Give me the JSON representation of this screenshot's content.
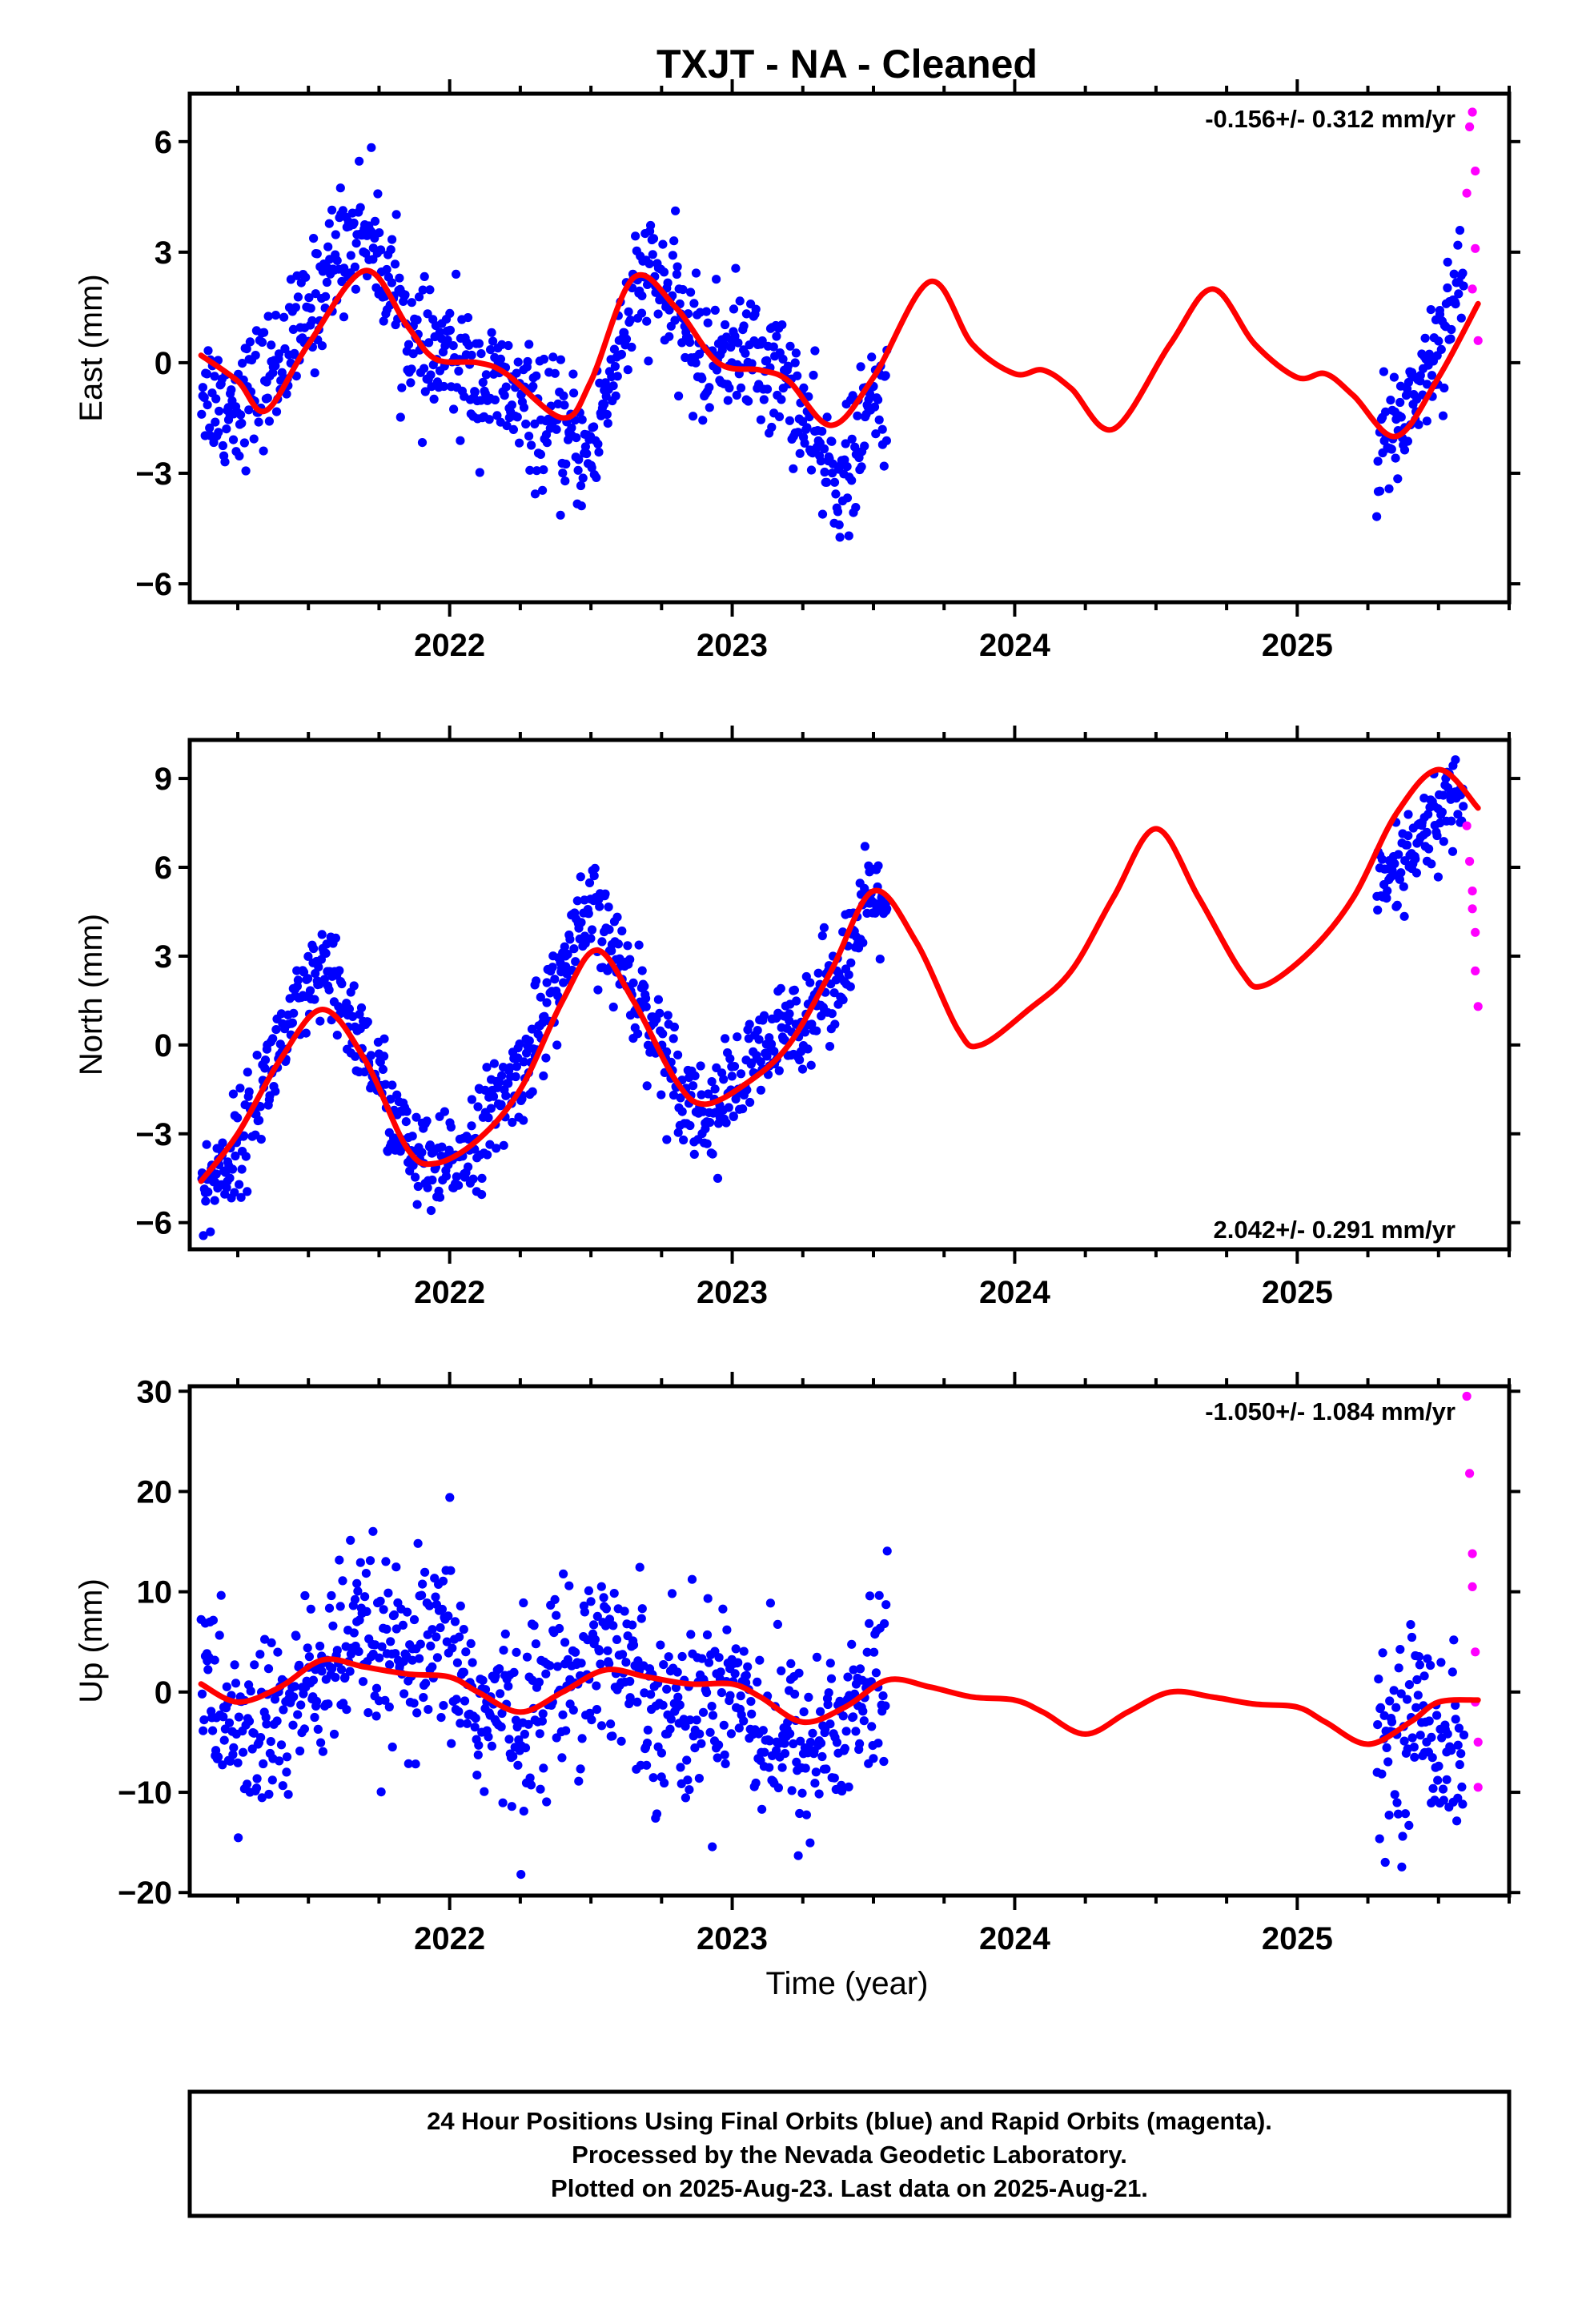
{
  "title": "TXJT  - NA - Cleaned",
  "xlabel": "Time (year)",
  "footer": {
    "line1": "24 Hour Positions Using Final Orbits (blue) and Rapid Orbits (magenta).",
    "line2": "Processed by the Nevada Geodetic Laboratory.",
    "line3": "Plotted on 2025-Aug-23. Last data on 2025-Aug-21."
  },
  "colors": {
    "final": "#0000ff",
    "rapid": "#ff00ff",
    "model": "#ff0000",
    "axes": "#000000"
  },
  "chart_data": [
    {
      "type": "scatter",
      "ylabel": "East (mm)",
      "rate": "-0.156+/- 0.312 mm/yr",
      "rate_position": "top-right",
      "xlim": [
        2021.08,
        2025.75
      ],
      "ylim": [
        -6.5,
        7.3
      ],
      "xticks": [
        2022,
        2023,
        2024,
        2025
      ],
      "yticks": [
        6,
        3,
        0,
        -3,
        -6
      ],
      "yticklabels": [
        "6",
        "3",
        "0",
        "−3",
        "−6"
      ],
      "final_segments": [
        [
          2021.12,
          2023.55
        ],
        [
          2025.28,
          2025.59
        ]
      ],
      "rapid_range": [
        2025.59,
        2025.64
      ],
      "model_curve": [
        [
          2021.12,
          0.2
        ],
        [
          2021.25,
          -0.5
        ],
        [
          2021.35,
          -1.3
        ],
        [
          2021.5,
          0.5
        ],
        [
          2021.7,
          2.5
        ],
        [
          2021.85,
          1.0
        ],
        [
          2021.95,
          0.1
        ],
        [
          2022.1,
          0.0
        ],
        [
          2022.2,
          -0.3
        ],
        [
          2022.4,
          -1.5
        ],
        [
          2022.5,
          -0.5
        ],
        [
          2022.65,
          2.3
        ],
        [
          2022.8,
          1.5
        ],
        [
          2022.95,
          0.0
        ],
        [
          2023.1,
          -0.2
        ],
        [
          2023.2,
          -0.5
        ],
        [
          2023.35,
          -1.7
        ],
        [
          2023.5,
          -0.4
        ],
        [
          2023.7,
          2.2
        ],
        [
          2023.85,
          0.5
        ],
        [
          2024.0,
          -0.3
        ],
        [
          2024.1,
          -0.2
        ],
        [
          2024.2,
          -0.7
        ],
        [
          2024.35,
          -1.8
        ],
        [
          2024.55,
          0.5
        ],
        [
          2024.7,
          2.0
        ],
        [
          2024.85,
          0.5
        ],
        [
          2025.0,
          -0.4
        ],
        [
          2025.1,
          -0.3
        ],
        [
          2025.2,
          -0.9
        ],
        [
          2025.35,
          -2.0
        ],
        [
          2025.5,
          -0.4
        ],
        [
          2025.64,
          1.6
        ]
      ],
      "scatter_points": [
        [
          2021.12,
          -0.5
        ],
        [
          2021.2,
          -1.2
        ],
        [
          2021.3,
          -0.8
        ],
        [
          2021.4,
          0.0
        ],
        [
          2021.5,
          1.2
        ],
        [
          2021.6,
          3.0
        ],
        [
          2021.7,
          3.8
        ],
        [
          2021.8,
          2.0
        ],
        [
          2021.9,
          0.0
        ],
        [
          2022.0,
          0.2
        ],
        [
          2022.1,
          -0.5
        ],
        [
          2022.2,
          -0.8
        ],
        [
          2022.3,
          -1.5
        ],
        [
          2022.4,
          -2.0
        ],
        [
          2022.5,
          -2.5
        ],
        [
          2022.6,
          0.5
        ],
        [
          2022.7,
          2.5
        ],
        [
          2022.8,
          1.5
        ],
        [
          2022.9,
          0.0
        ],
        [
          2023.0,
          0.5
        ],
        [
          2023.1,
          0.0
        ],
        [
          2023.2,
          -0.5
        ],
        [
          2023.3,
          -2.5
        ],
        [
          2023.4,
          -3.2
        ],
        [
          2023.5,
          -1.0
        ],
        [
          2025.3,
          -2.5
        ],
        [
          2025.4,
          -1.0
        ],
        [
          2025.5,
          0.5
        ],
        [
          2025.55,
          2.0
        ]
      ],
      "rapid_points": [
        [
          2025.6,
          4.6
        ],
        [
          2025.61,
          6.4
        ],
        [
          2025.62,
          6.8
        ],
        [
          2025.63,
          5.2
        ],
        [
          2025.63,
          3.1
        ],
        [
          2025.62,
          2.0
        ],
        [
          2025.64,
          0.6
        ]
      ]
    },
    {
      "type": "scatter",
      "ylabel": "North (mm)",
      "rate": "2.042+/- 0.291 mm/yr",
      "rate_position": "bottom-right",
      "xlim": [
        2021.08,
        2025.75
      ],
      "ylim": [
        -6.9,
        10.3
      ],
      "xticks": [
        2022,
        2023,
        2024,
        2025
      ],
      "yticks": [
        9,
        6,
        3,
        0,
        -3,
        -6
      ],
      "yticklabels": [
        "9",
        "6",
        "3",
        "0",
        "−3",
        "−6"
      ],
      "final_segments": [
        [
          2021.12,
          2023.55
        ],
        [
          2025.28,
          2025.59
        ]
      ],
      "rapid_range": [
        2025.59,
        2025.64
      ],
      "model_curve": [
        [
          2021.12,
          -4.6
        ],
        [
          2021.25,
          -3.0
        ],
        [
          2021.4,
          -0.5
        ],
        [
          2021.55,
          1.2
        ],
        [
          2021.7,
          -0.5
        ],
        [
          2021.85,
          -3.5
        ],
        [
          2021.95,
          -4.0
        ],
        [
          2022.1,
          -3.2
        ],
        [
          2022.25,
          -1.5
        ],
        [
          2022.4,
          1.5
        ],
        [
          2022.52,
          3.2
        ],
        [
          2022.65,
          1.5
        ],
        [
          2022.8,
          -1.2
        ],
        [
          2022.9,
          -2.0
        ],
        [
          2023.05,
          -1.3
        ],
        [
          2023.2,
          0.0
        ],
        [
          2023.35,
          2.5
        ],
        [
          2023.5,
          5.2
        ],
        [
          2023.65,
          3.5
        ],
        [
          2023.8,
          0.5
        ],
        [
          2023.88,
          0.0
        ],
        [
          2024.05,
          1.2
        ],
        [
          2024.2,
          2.5
        ],
        [
          2024.35,
          5.0
        ],
        [
          2024.5,
          7.3
        ],
        [
          2024.65,
          5.0
        ],
        [
          2024.8,
          2.5
        ],
        [
          2024.88,
          2.0
        ],
        [
          2025.05,
          3.2
        ],
        [
          2025.2,
          5.0
        ],
        [
          2025.35,
          7.8
        ],
        [
          2025.5,
          9.3
        ],
        [
          2025.64,
          8.0
        ]
      ],
      "scatter_points": [
        [
          2021.12,
          -5.0
        ],
        [
          2021.25,
          -3.5
        ],
        [
          2021.4,
          0.0
        ],
        [
          2021.55,
          2.5
        ],
        [
          2021.7,
          0.0
        ],
        [
          2021.85,
          -3.5
        ],
        [
          2021.95,
          -4.5
        ],
        [
          2022.1,
          -3.0
        ],
        [
          2022.25,
          -1.0
        ],
        [
          2022.4,
          2.5
        ],
        [
          2022.5,
          4.5
        ],
        [
          2022.65,
          2.0
        ],
        [
          2022.8,
          -1.0
        ],
        [
          2022.9,
          -2.5
        ],
        [
          2023.05,
          -1.0
        ],
        [
          2023.2,
          0.5
        ],
        [
          2023.35,
          2.0
        ],
        [
          2023.5,
          5.0
        ],
        [
          2025.3,
          5.0
        ],
        [
          2025.45,
          7.0
        ],
        [
          2025.55,
          8.5
        ]
      ],
      "rapid_points": [
        [
          2025.6,
          7.4
        ],
        [
          2025.61,
          6.2
        ],
        [
          2025.62,
          5.2
        ],
        [
          2025.62,
          4.6
        ],
        [
          2025.63,
          3.8
        ],
        [
          2025.63,
          2.5
        ],
        [
          2025.64,
          1.3
        ]
      ]
    },
    {
      "type": "scatter",
      "ylabel": "Up (mm)",
      "rate": "-1.050+/- 1.084 mm/yr",
      "rate_position": "top-right",
      "xlim": [
        2021.08,
        2025.75
      ],
      "ylim": [
        -20.3,
        30.5
      ],
      "xticks": [
        2022,
        2023,
        2024,
        2025
      ],
      "yticks": [
        30,
        20,
        10,
        0,
        -10,
        -20
      ],
      "yticklabels": [
        "30",
        "20",
        "10",
        "0",
        "−10",
        "−20"
      ],
      "final_segments": [
        [
          2021.12,
          2023.55
        ],
        [
          2025.28,
          2025.59
        ]
      ],
      "rapid_range": [
        2025.59,
        2025.64
      ],
      "model_curve": [
        [
          2021.12,
          0.8
        ],
        [
          2021.25,
          -1.0
        ],
        [
          2021.4,
          0.5
        ],
        [
          2021.55,
          3.2
        ],
        [
          2021.7,
          2.5
        ],
        [
          2021.85,
          1.8
        ],
        [
          2022.0,
          1.5
        ],
        [
          2022.1,
          0.0
        ],
        [
          2022.25,
          -2.0
        ],
        [
          2022.4,
          0.0
        ],
        [
          2022.55,
          2.2
        ],
        [
          2022.7,
          1.5
        ],
        [
          2022.85,
          0.8
        ],
        [
          2023.0,
          0.8
        ],
        [
          2023.1,
          -0.5
        ],
        [
          2023.25,
          -3.0
        ],
        [
          2023.4,
          -1.5
        ],
        [
          2023.55,
          1.2
        ],
        [
          2023.7,
          0.5
        ],
        [
          2023.85,
          -0.5
        ],
        [
          2024.0,
          -0.8
        ],
        [
          2024.1,
          -2.0
        ],
        [
          2024.25,
          -4.2
        ],
        [
          2024.4,
          -2.0
        ],
        [
          2024.55,
          0.0
        ],
        [
          2024.7,
          -0.5
        ],
        [
          2024.85,
          -1.2
        ],
        [
          2025.0,
          -1.5
        ],
        [
          2025.1,
          -3.0
        ],
        [
          2025.25,
          -5.2
        ],
        [
          2025.4,
          -3.0
        ],
        [
          2025.5,
          -1.0
        ],
        [
          2025.64,
          -0.8
        ]
      ],
      "scatter_points": [
        [
          2021.12,
          2.0
        ],
        [
          2021.25,
          -5.0
        ],
        [
          2021.4,
          -3.0
        ],
        [
          2021.55,
          2.0
        ],
        [
          2021.7,
          5.0
        ],
        [
          2021.85,
          2.0
        ],
        [
          2022.0,
          5.0
        ],
        [
          2022.1,
          -2.0
        ],
        [
          2022.25,
          -3.0
        ],
        [
          2022.4,
          2.0
        ],
        [
          2022.55,
          5.0
        ],
        [
          2022.7,
          0.0
        ],
        [
          2022.85,
          -2.0
        ],
        [
          2023.0,
          2.0
        ],
        [
          2023.1,
          -3.0
        ],
        [
          2023.25,
          -6.0
        ],
        [
          2023.4,
          -3.0
        ],
        [
          2023.55,
          2.0
        ],
        [
          2025.3,
          -5.0
        ],
        [
          2025.45,
          -2.0
        ],
        [
          2025.55,
          -6.0
        ]
      ],
      "rapid_points": [
        [
          2025.6,
          29.5
        ],
        [
          2025.61,
          21.8
        ],
        [
          2025.62,
          13.8
        ],
        [
          2025.62,
          10.5
        ],
        [
          2025.63,
          4.0
        ],
        [
          2025.63,
          -1.0
        ],
        [
          2025.64,
          -5.0
        ],
        [
          2025.64,
          -9.5
        ]
      ]
    }
  ]
}
